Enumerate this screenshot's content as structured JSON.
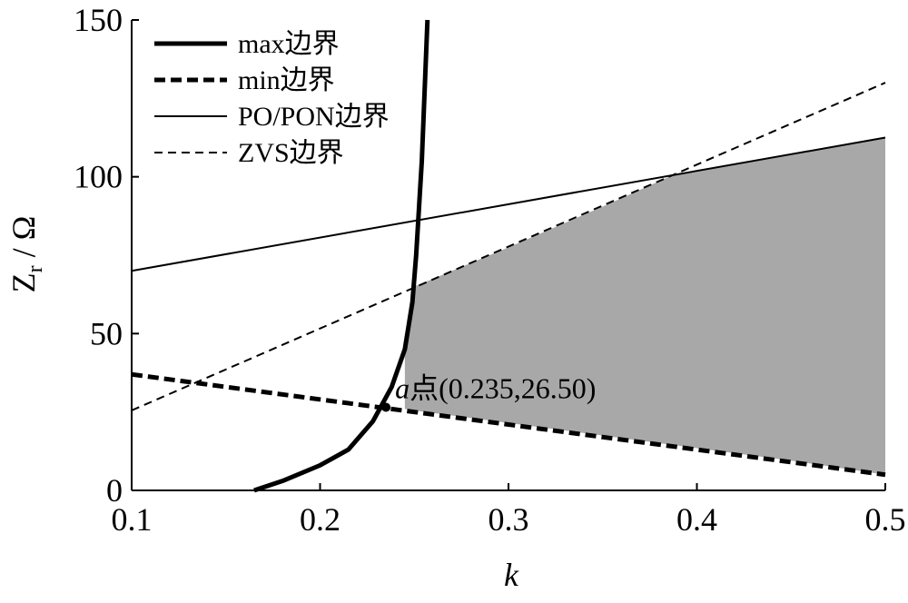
{
  "chart_data": {
    "type": "line",
    "xlabel": "k",
    "ylabel_main": "Z",
    "ylabel_sub": "r",
    "ylabel_unit": " / Ω",
    "xlim": [
      0.1,
      0.5
    ],
    "ylim": [
      0,
      150
    ],
    "x_ticks": [
      0.1,
      0.2,
      0.3,
      0.4,
      0.5
    ],
    "x_tick_labels": [
      "0.1",
      "0.2",
      "0.3",
      "0.4",
      "0.5"
    ],
    "y_ticks": [
      0,
      50,
      100,
      150
    ],
    "y_tick_labels": [
      "0",
      "50",
      "100",
      "150"
    ],
    "grid": false,
    "legend_position": "top-left",
    "series": [
      {
        "name": "max边界",
        "style": "thick-solid",
        "x": [
          0.165,
          0.18,
          0.2,
          0.215,
          0.228,
          0.238,
          0.245,
          0.249,
          0.251,
          0.2525,
          0.254,
          0.255,
          0.256,
          0.257
        ],
        "y": [
          0,
          3,
          8,
          13,
          22,
          33,
          45,
          60,
          75,
          90,
          105,
          120,
          135,
          150
        ]
      },
      {
        "name": "min边界",
        "style": "thick-dashed",
        "x": [
          0.1,
          0.5
        ],
        "y": [
          37,
          5
        ]
      },
      {
        "name": "PO/PON边界",
        "style": "thin-solid",
        "x": [
          0.1,
          0.5
        ],
        "y": [
          70,
          112.5
        ]
      },
      {
        "name": "ZVS边界",
        "style": "thin-dashed",
        "x": [
          0.1,
          0.5
        ],
        "y": [
          25.5,
          130
        ]
      }
    ],
    "shaded_region": {
      "color": "#a8a8a8",
      "x": [
        0.245,
        0.25,
        0.3,
        0.35,
        0.387,
        0.45,
        0.5,
        0.5
      ],
      "y_top": [
        45,
        65,
        77.5,
        90.5,
        100.5,
        107,
        112.5,
        112.5
      ],
      "y_bottom": [
        26,
        25.5,
        21.5,
        17.5,
        14.5,
        9.5,
        5,
        5
      ]
    },
    "annotation": {
      "point": [
        0.235,
        26.5
      ],
      "italic_label": "a",
      "label": "点(0.235,26.50)"
    }
  }
}
